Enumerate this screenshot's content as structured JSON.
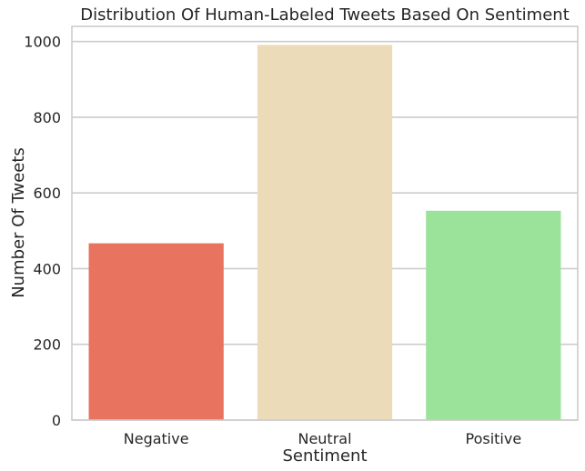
{
  "chart_data": {
    "type": "bar",
    "title": "Distribution Of Human-Labeled Tweets Based On Sentiment",
    "xlabel": "Sentiment",
    "ylabel": "Number Of Tweets",
    "categories": [
      "Negative",
      "Neutral",
      "Positive"
    ],
    "values": [
      467,
      991,
      553
    ],
    "colors": [
      "#e8735f",
      "#ecdbb9",
      "#9be29a"
    ],
    "ylim": [
      0,
      1040
    ],
    "yticks": [
      0,
      200,
      400,
      600,
      800,
      1000
    ],
    "grid": true,
    "legend": "none"
  }
}
